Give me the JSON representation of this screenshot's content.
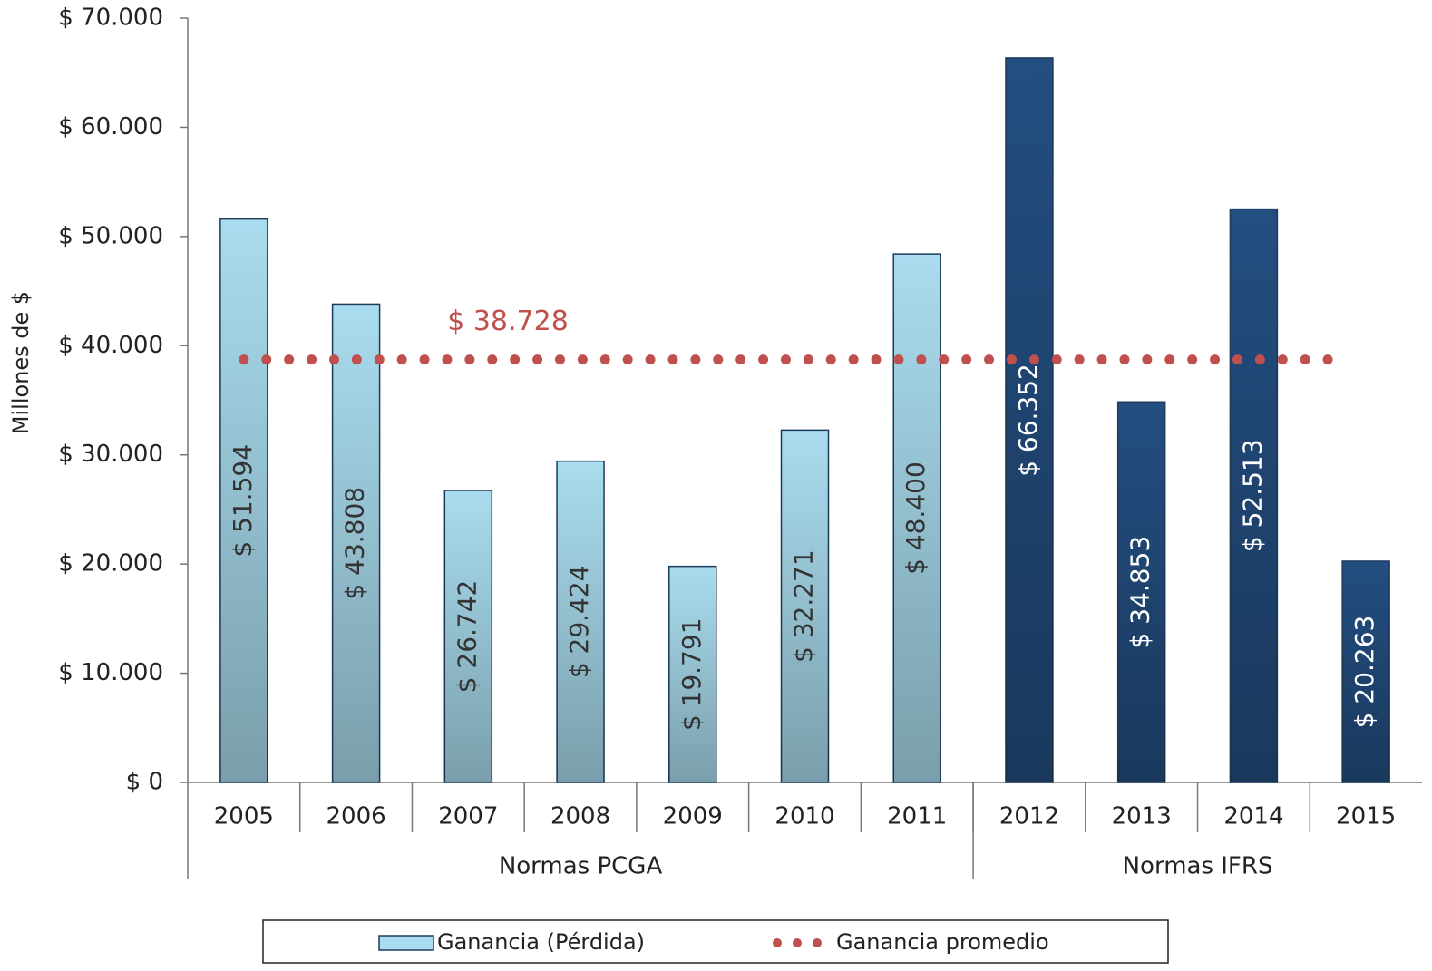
{
  "chart_data": {
    "type": "bar",
    "y_label": "Millones de $",
    "categories": [
      "2005",
      "2006",
      "2007",
      "2008",
      "2009",
      "2010",
      "2011",
      "2012",
      "2013",
      "2014",
      "2015"
    ],
    "groups": [
      {
        "name": "Normas PCGA",
        "span": 7
      },
      {
        "name": "Normas IFRS",
        "span": 4
      }
    ],
    "series": [
      {
        "name": "Ganancia (Pérdida)",
        "values": [
          51594,
          43808,
          26742,
          29424,
          19791,
          32271,
          48400,
          66352,
          34853,
          52513,
          20263
        ],
        "value_labels": [
          "$ 51.594",
          "$ 43.808",
          "$ 26.742",
          "$ 29.424",
          "$ 19.791",
          "$ 32.271",
          "$ 48.400",
          "$ 66.352",
          "$ 34.853",
          "$ 52.513",
          "$ 20.263"
        ],
        "colors": [
          "#a9dcee",
          "#a9dcee",
          "#a9dcee",
          "#a9dcee",
          "#a9dcee",
          "#a9dcee",
          "#a9dcee",
          "#234e80",
          "#234e80",
          "#234e80",
          "#234e80"
        ],
        "label_colors": [
          "#333333",
          "#333333",
          "#333333",
          "#333333",
          "#333333",
          "#333333",
          "#333333",
          "#ffffff",
          "#ffffff",
          "#ffffff",
          "#ffffff"
        ]
      }
    ],
    "average": {
      "name": "Ganancia promedio",
      "value": 38728,
      "label": "$ 38.728",
      "color": "#c0504d"
    },
    "ylim": [
      0,
      70000
    ],
    "yticks": [
      {
        "value": 0,
        "label": "$ 0"
      },
      {
        "value": 10000,
        "label": "$ 10.000"
      },
      {
        "value": 20000,
        "label": "$ 20.000"
      },
      {
        "value": 30000,
        "label": "$ 30.000"
      },
      {
        "value": 40000,
        "label": "$ 40.000"
      },
      {
        "value": 50000,
        "label": "$ 50.000"
      },
      {
        "value": 60000,
        "label": "$ 60.000"
      },
      {
        "value": 70000,
        "label": "$ 70.000"
      }
    ]
  }
}
